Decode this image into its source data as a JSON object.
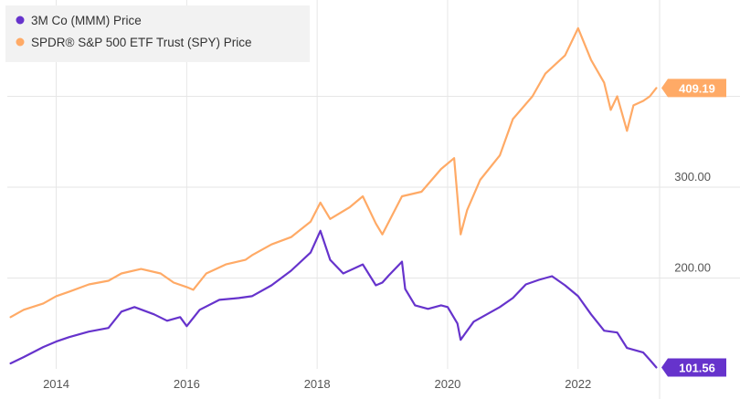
{
  "chart_data": {
    "type": "line",
    "title": "",
    "xlabel": "",
    "ylabel": "",
    "x_ticks": [
      "2014",
      "2016",
      "2018",
      "2020",
      "2022"
    ],
    "y_ticks": [
      "200.00",
      "300.00"
    ],
    "xlim": [
      2013.25,
      2023.25
    ],
    "ylim": [
      100,
      500
    ],
    "grid": true,
    "legend_position": "top-left",
    "series": [
      {
        "name": "3M Co (MMM) Price",
        "color": "#6633cc",
        "last_value_label": "101.56",
        "points": [
          [
            2013.3,
            106
          ],
          [
            2013.5,
            113
          ],
          [
            2013.8,
            124
          ],
          [
            2014.0,
            130
          ],
          [
            2014.2,
            135
          ],
          [
            2014.5,
            141
          ],
          [
            2014.8,
            145
          ],
          [
            2015.0,
            163
          ],
          [
            2015.2,
            168
          ],
          [
            2015.5,
            160
          ],
          [
            2015.7,
            153
          ],
          [
            2015.9,
            157
          ],
          [
            2016.0,
            147
          ],
          [
            2016.2,
            165
          ],
          [
            2016.5,
            176
          ],
          [
            2016.8,
            178
          ],
          [
            2017.0,
            180
          ],
          [
            2017.3,
            192
          ],
          [
            2017.6,
            208
          ],
          [
            2017.9,
            228
          ],
          [
            2018.05,
            252
          ],
          [
            2018.2,
            220
          ],
          [
            2018.4,
            205
          ],
          [
            2018.7,
            215
          ],
          [
            2018.9,
            192
          ],
          [
            2019.0,
            195
          ],
          [
            2019.1,
            203
          ],
          [
            2019.3,
            218
          ],
          [
            2019.35,
            188
          ],
          [
            2019.5,
            170
          ],
          [
            2019.7,
            166
          ],
          [
            2019.9,
            170
          ],
          [
            2020.0,
            168
          ],
          [
            2020.15,
            150
          ],
          [
            2020.2,
            132
          ],
          [
            2020.4,
            152
          ],
          [
            2020.6,
            160
          ],
          [
            2020.8,
            168
          ],
          [
            2021.0,
            178
          ],
          [
            2021.2,
            193
          ],
          [
            2021.4,
            198
          ],
          [
            2021.6,
            202
          ],
          [
            2021.8,
            192
          ],
          [
            2022.0,
            180
          ],
          [
            2022.2,
            160
          ],
          [
            2022.4,
            142
          ],
          [
            2022.6,
            140
          ],
          [
            2022.75,
            123
          ],
          [
            2022.9,
            120
          ],
          [
            2023.0,
            118
          ],
          [
            2023.1,
            110
          ],
          [
            2023.2,
            101.56
          ]
        ]
      },
      {
        "name": "SPDR® S&P 500 ETF Trust (SPY) Price",
        "color": "#ffaa66",
        "last_value_label": "409.19",
        "points": [
          [
            2013.3,
            157
          ],
          [
            2013.5,
            165
          ],
          [
            2013.8,
            172
          ],
          [
            2014.0,
            180
          ],
          [
            2014.2,
            185
          ],
          [
            2014.5,
            193
          ],
          [
            2014.8,
            197
          ],
          [
            2015.0,
            205
          ],
          [
            2015.3,
            210
          ],
          [
            2015.6,
            205
          ],
          [
            2015.8,
            195
          ],
          [
            2016.0,
            190
          ],
          [
            2016.1,
            187
          ],
          [
            2016.3,
            205
          ],
          [
            2016.6,
            215
          ],
          [
            2016.9,
            220
          ],
          [
            2017.0,
            225
          ],
          [
            2017.3,
            237
          ],
          [
            2017.6,
            245
          ],
          [
            2017.9,
            262
          ],
          [
            2018.05,
            283
          ],
          [
            2018.2,
            265
          ],
          [
            2018.5,
            278
          ],
          [
            2018.7,
            290
          ],
          [
            2018.9,
            260
          ],
          [
            2019.0,
            248
          ],
          [
            2019.1,
            262
          ],
          [
            2019.3,
            290
          ],
          [
            2019.6,
            295
          ],
          [
            2019.9,
            320
          ],
          [
            2020.1,
            332
          ],
          [
            2020.2,
            248
          ],
          [
            2020.3,
            275
          ],
          [
            2020.5,
            308
          ],
          [
            2020.8,
            335
          ],
          [
            2021.0,
            375
          ],
          [
            2021.3,
            400
          ],
          [
            2021.5,
            425
          ],
          [
            2021.8,
            445
          ],
          [
            2022.0,
            475
          ],
          [
            2022.2,
            440
          ],
          [
            2022.4,
            415
          ],
          [
            2022.5,
            385
          ],
          [
            2022.6,
            400
          ],
          [
            2022.75,
            362
          ],
          [
            2022.85,
            390
          ],
          [
            2023.0,
            395
          ],
          [
            2023.1,
            400
          ],
          [
            2023.2,
            409.19
          ]
        ]
      }
    ]
  }
}
